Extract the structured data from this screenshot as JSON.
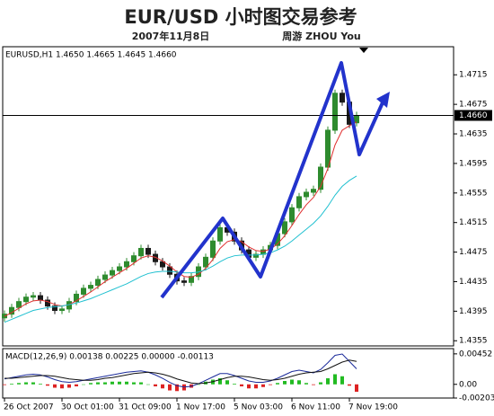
{
  "header": {
    "title": "EUR/USD 小时图交易参考",
    "date": "2007年11月8日",
    "author": "周游 ZHOU You"
  },
  "chart_data": [
    {
      "type": "candlestick",
      "label": "EURUSD,H1 1.4650 1.4665 1.4645 1.4660",
      "categories": [
        "26 Oct 2007",
        null,
        null,
        null,
        null,
        null,
        null,
        null,
        "30 Oct 01:00",
        null,
        null,
        null,
        null,
        null,
        null,
        null,
        "31 Oct 09:00",
        null,
        null,
        null,
        null,
        null,
        null,
        null,
        "1 Nov 17:00",
        null,
        null,
        null,
        null,
        null,
        null,
        null,
        "5 Nov 03:00",
        null,
        null,
        null,
        null,
        null,
        null,
        null,
        "6 Nov 11:00",
        null,
        null,
        null,
        null,
        null,
        null,
        null,
        "7 Nov 19:00",
        null
      ],
      "open": [
        1.4386,
        1.4391,
        1.44,
        1.4408,
        1.4414,
        1.4416,
        1.441,
        1.4402,
        1.4396,
        1.4398,
        1.4408,
        1.4418,
        1.4426,
        1.443,
        1.4438,
        1.4444,
        1.445,
        1.4455,
        1.4462,
        1.447,
        1.448,
        1.4472,
        1.4462,
        1.4455,
        1.4445,
        1.4436,
        1.4434,
        1.4442,
        1.4455,
        1.4468,
        1.449,
        1.4508,
        1.4502,
        1.449,
        1.4478,
        1.4468,
        1.4472,
        1.4478,
        1.4484,
        1.45,
        1.4516,
        1.4535,
        1.455,
        1.4556,
        1.456,
        1.459,
        1.464,
        1.469,
        1.4678,
        1.465
      ],
      "high": [
        1.4396,
        1.4405,
        1.4413,
        1.4419,
        1.4421,
        1.4421,
        1.4415,
        1.4407,
        1.4403,
        1.4413,
        1.4423,
        1.4431,
        1.4435,
        1.4443,
        1.4449,
        1.4455,
        1.446,
        1.4467,
        1.4475,
        1.4485,
        1.4485,
        1.4477,
        1.4467,
        1.446,
        1.445,
        1.4441,
        1.4447,
        1.446,
        1.4473,
        1.4495,
        1.4513,
        1.4513,
        1.4507,
        1.4495,
        1.4483,
        1.4477,
        1.4483,
        1.4489,
        1.4505,
        1.4521,
        1.454,
        1.4555,
        1.4561,
        1.4565,
        1.4595,
        1.4645,
        1.4695,
        1.4695,
        1.4683,
        1.4665
      ],
      "low": [
        1.4381,
        1.4386,
        1.4395,
        1.4403,
        1.4409,
        1.4405,
        1.4397,
        1.4391,
        1.4391,
        1.4393,
        1.4403,
        1.4413,
        1.4421,
        1.4425,
        1.4433,
        1.4439,
        1.4445,
        1.445,
        1.4457,
        1.4465,
        1.4467,
        1.4457,
        1.445,
        1.444,
        1.4431,
        1.4429,
        1.4429,
        1.4437,
        1.445,
        1.4463,
        1.4485,
        1.4497,
        1.4485,
        1.4473,
        1.4463,
        1.4463,
        1.4467,
        1.4473,
        1.4479,
        1.4495,
        1.4511,
        1.453,
        1.4545,
        1.4551,
        1.4555,
        1.4585,
        1.4635,
        1.4673,
        1.4643,
        1.4645
      ],
      "close": [
        1.4391,
        1.44,
        1.4408,
        1.4414,
        1.4416,
        1.441,
        1.4402,
        1.4396,
        1.4398,
        1.4408,
        1.4418,
        1.4426,
        1.443,
        1.4438,
        1.4444,
        1.445,
        1.4455,
        1.4462,
        1.447,
        1.448,
        1.4472,
        1.4462,
        1.4455,
        1.4445,
        1.4436,
        1.4434,
        1.4442,
        1.4455,
        1.4468,
        1.449,
        1.4508,
        1.4502,
        1.449,
        1.4478,
        1.4468,
        1.4472,
        1.4478,
        1.4484,
        1.45,
        1.4516,
        1.4535,
        1.455,
        1.4556,
        1.456,
        1.459,
        1.464,
        1.469,
        1.4678,
        1.4648,
        1.466
      ],
      "up_color": "#2e8b2e",
      "down_color": "#1a1a1a",
      "lines": [
        {
          "color": "#e03030",
          "values": [
            1.4388,
            1.4393,
            1.4399,
            1.4405,
            1.4409,
            1.441,
            1.4408,
            1.4404,
            1.4402,
            1.4404,
            1.4409,
            1.4415,
            1.4421,
            1.4428,
            1.4435,
            1.4441,
            1.4447,
            1.4453,
            1.446,
            1.4467,
            1.447,
            1.4468,
            1.4463,
            1.4456,
            1.4448,
            1.4442,
            1.4441,
            1.4445,
            1.4453,
            1.4465,
            1.448,
            1.4489,
            1.4492,
            1.4489,
            1.4482,
            1.4477,
            1.4476,
            1.4479,
            1.4486,
            1.4497,
            1.4511,
            1.4526,
            1.4539,
            1.4549,
            1.4564,
            1.4588,
            1.462,
            1.464,
            1.4646,
            1.4651
          ]
        },
        {
          "color": "#20c0d0",
          "values": [
            1.438,
            1.4384,
            1.4388,
            1.4392,
            1.4396,
            1.4398,
            1.44,
            1.4401,
            1.4402,
            1.4404,
            1.4406,
            1.4409,
            1.4412,
            1.4416,
            1.442,
            1.4424,
            1.4428,
            1.4432,
            1.4437,
            1.4442,
            1.4446,
            1.4448,
            1.4449,
            1.4449,
            1.4448,
            1.4447,
            1.4447,
            1.4448,
            1.4451,
            1.4456,
            1.4462,
            1.4467,
            1.447,
            1.4471,
            1.4471,
            1.4471,
            1.4472,
            1.4474,
            1.4478,
            1.4483,
            1.449,
            1.4498,
            1.4506,
            1.4514,
            1.4524,
            1.4537,
            1.4552,
            1.4564,
            1.4572,
            1.4578
          ]
        }
      ],
      "current_price": {
        "value": 1.466,
        "label": "1.4660"
      },
      "ylim": [
        1.4348,
        1.4753
      ],
      "yticks": [
        1.4715,
        1.4675,
        1.4635,
        1.4595,
        1.4555,
        1.4515,
        1.4475,
        1.4435,
        1.4395,
        1.4355
      ]
    },
    {
      "type": "macd",
      "label": "MACD(12,26,9) 0.00138 0.00225 0.00000 -0.00113",
      "histogram": {
        "up_color": "#22bb22",
        "down_color": "#dd2222",
        "values": [
          -0.0001,
          0.0001,
          0.0002,
          0.0003,
          0.0003,
          0.0001,
          -0.0002,
          -0.0005,
          -0.0006,
          -0.0005,
          -0.0003,
          0,
          0.0002,
          0.0003,
          0.0003,
          0.0004,
          0.0004,
          0.0004,
          0.0003,
          0.0003,
          0,
          -0.0003,
          -0.0006,
          -0.0009,
          -0.001,
          -0.0009,
          -0.0005,
          0,
          0.0004,
          0.0007,
          0.0009,
          0.0006,
          0.0001,
          -0.0003,
          -0.0006,
          -0.0006,
          -0.0004,
          -0.0001,
          0.0002,
          0.0005,
          0.0007,
          0.0006,
          0.0002,
          -0.0001,
          0.0003,
          0.0009,
          0.0015,
          0.0012,
          -0.0002,
          -0.0011
        ]
      },
      "lines": [
        {
          "color": "#1a2a9a",
          "values": [
            0.0008,
            0.001,
            0.0012,
            0.0014,
            0.0015,
            0.0014,
            0.0011,
            0.0007,
            0.0004,
            0.0003,
            0.0004,
            0.0006,
            0.0008,
            0.001,
            0.0012,
            0.0014,
            0.0016,
            0.0018,
            0.0019,
            0.002,
            0.0018,
            0.0014,
            0.0009,
            0.0003,
            -0.0002,
            -0.0004,
            -0.0003,
            0.0001,
            0.0006,
            0.0011,
            0.0016,
            0.0016,
            0.0013,
            0.0009,
            0.0005,
            0.0003,
            0.0003,
            0.0005,
            0.0009,
            0.0014,
            0.0019,
            0.0021,
            0.0019,
            0.0017,
            0.0022,
            0.0032,
            0.0043,
            0.0045,
            0.0034,
            0.0023
          ]
        },
        {
          "color": "#111111",
          "values": [
            0.0009,
            0.0009,
            0.001,
            0.0011,
            0.0012,
            0.0013,
            0.0013,
            0.0012,
            0.001,
            0.0008,
            0.0007,
            0.0006,
            0.0006,
            0.0007,
            0.0009,
            0.001,
            0.0012,
            0.0014,
            0.0016,
            0.0017,
            0.0018,
            0.0017,
            0.0015,
            0.0012,
            0.0008,
            0.0005,
            0.0002,
            0.0001,
            0.0002,
            0.0004,
            0.0007,
            0.001,
            0.0012,
            0.0012,
            0.0011,
            0.0009,
            0.0007,
            0.0006,
            0.0007,
            0.0009,
            0.0012,
            0.0015,
            0.0017,
            0.0018,
            0.0019,
            0.0023,
            0.0028,
            0.0033,
            0.0036,
            0.0034
          ]
        }
      ],
      "ylim": [
        -0.00203,
        0.0053
      ],
      "yticks": [
        0.00452,
        {
          "value": 0,
          "label": "0.00"
        },
        -0.00203
      ]
    }
  ]
}
